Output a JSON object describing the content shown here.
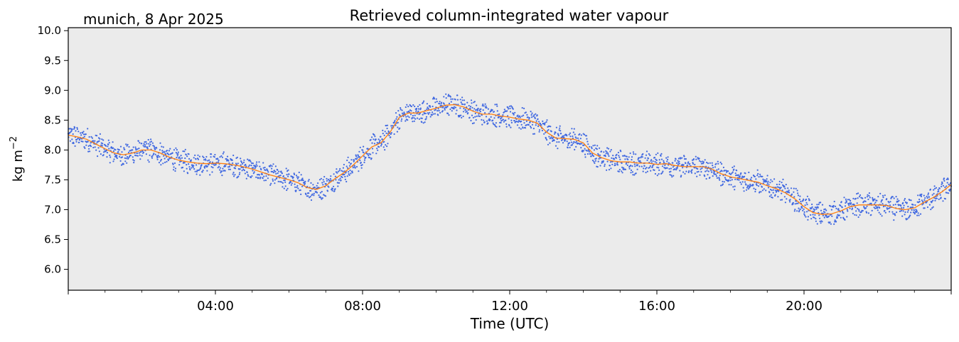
{
  "header": {
    "location_date": "munich, 8 Apr 2025"
  },
  "chart_data": {
    "type": "scatter",
    "title": "Retrieved column-integrated water vapour",
    "xlabel": "Time (UTC)",
    "ylabel": "kg m",
    "ylabel_superscript": "−2",
    "xlim": [
      0,
      24
    ],
    "ylim": [
      5.65,
      10.05
    ],
    "x_ticks": [
      {
        "value": 4,
        "label": "04:00"
      },
      {
        "value": 8,
        "label": "08:00"
      },
      {
        "value": 12,
        "label": "12:00"
      },
      {
        "value": 16,
        "label": "16:00"
      },
      {
        "value": 20,
        "label": "20:00"
      }
    ],
    "y_ticks": [
      {
        "value": 6.0,
        "label": "6.0"
      },
      {
        "value": 6.5,
        "label": "6.5"
      },
      {
        "value": 7.0,
        "label": "7.0"
      },
      {
        "value": 7.5,
        "label": "7.5"
      },
      {
        "value": 8.0,
        "label": "8.0"
      },
      {
        "value": 8.5,
        "label": "8.5"
      },
      {
        "value": 9.0,
        "label": "9.0"
      },
      {
        "value": 9.5,
        "label": "9.5"
      },
      {
        "value": 10.0,
        "label": "10.0"
      }
    ],
    "grid": false,
    "legend": "none",
    "background_color": "#ebebeb",
    "series": [
      {
        "kind": "scatter",
        "color": "#4169e1",
        "x": [
          0,
          0.25,
          0.5,
          0.75,
          1.0,
          1.25,
          1.5,
          1.75,
          2.0,
          2.25,
          2.5,
          2.75,
          3.0,
          3.25,
          3.5,
          3.75,
          4.0,
          4.25,
          4.5,
          4.75,
          5.0,
          5.25,
          5.5,
          5.75,
          6.0,
          6.25,
          6.5,
          6.75,
          7.0,
          7.25,
          7.5,
          7.75,
          8.0,
          8.25,
          8.5,
          8.75,
          9.0,
          9.25,
          9.5,
          9.75,
          10.0,
          10.25,
          10.5,
          10.75,
          11.0,
          11.25,
          11.5,
          11.75,
          12.0,
          12.25,
          12.5,
          12.75,
          13.0,
          13.25,
          13.5,
          13.75,
          14.0,
          14.25,
          14.5,
          14.75,
          15.0,
          15.25,
          15.5,
          15.75,
          16.0,
          16.25,
          16.5,
          16.75,
          17.0,
          17.25,
          17.5,
          17.75,
          18.0,
          18.25,
          18.5,
          18.75,
          19.0,
          19.25,
          19.5,
          19.75,
          20.0,
          20.25,
          20.5,
          20.75,
          21.0,
          21.25,
          21.5,
          21.75,
          22.0,
          22.25,
          22.5,
          22.75,
          23.0,
          23.25,
          23.5,
          23.75,
          24.0
        ],
        "y": [
          8.25,
          8.22,
          8.18,
          8.1,
          8.02,
          7.95,
          7.92,
          7.95,
          8.0,
          8.0,
          7.95,
          7.88,
          7.83,
          7.8,
          7.78,
          7.77,
          7.78,
          7.77,
          7.75,
          7.72,
          7.68,
          7.63,
          7.58,
          7.54,
          7.5,
          7.45,
          7.37,
          7.34,
          7.4,
          7.52,
          7.62,
          7.75,
          7.9,
          8.05,
          8.12,
          8.3,
          8.55,
          8.62,
          8.62,
          8.66,
          8.7,
          8.75,
          8.76,
          8.72,
          8.65,
          8.6,
          8.6,
          8.57,
          8.55,
          8.52,
          8.5,
          8.45,
          8.3,
          8.2,
          8.19,
          8.18,
          8.12,
          7.95,
          7.87,
          7.82,
          7.8,
          7.8,
          7.78,
          7.78,
          7.76,
          7.77,
          7.74,
          7.72,
          7.72,
          7.72,
          7.68,
          7.6,
          7.55,
          7.52,
          7.49,
          7.46,
          7.4,
          7.35,
          7.28,
          7.18,
          7.05,
          6.95,
          6.92,
          6.93,
          6.98,
          7.05,
          7.08,
          7.08,
          7.08,
          7.07,
          7.02,
          7.0,
          7.03,
          7.12,
          7.2,
          7.3,
          7.42
        ],
        "spread": 0.15
      },
      {
        "kind": "line",
        "color": "#ff7f0e",
        "x": [
          0,
          0.25,
          0.5,
          0.75,
          1.0,
          1.25,
          1.5,
          1.75,
          2.0,
          2.25,
          2.5,
          2.75,
          3.0,
          3.25,
          3.5,
          3.75,
          4.0,
          4.25,
          4.5,
          4.75,
          5.0,
          5.25,
          5.5,
          5.75,
          6.0,
          6.25,
          6.5,
          6.75,
          7.0,
          7.25,
          7.5,
          7.75,
          8.0,
          8.25,
          8.5,
          8.75,
          9.0,
          9.25,
          9.5,
          9.75,
          10.0,
          10.25,
          10.5,
          10.75,
          11.0,
          11.25,
          11.5,
          11.75,
          12.0,
          12.25,
          12.5,
          12.75,
          13.0,
          13.25,
          13.5,
          13.75,
          14.0,
          14.25,
          14.5,
          14.75,
          15.0,
          15.25,
          15.5,
          15.75,
          16.0,
          16.25,
          16.5,
          16.75,
          17.0,
          17.25,
          17.5,
          17.75,
          18.0,
          18.25,
          18.5,
          18.75,
          19.0,
          19.25,
          19.5,
          19.75,
          20.0,
          20.25,
          20.5,
          20.75,
          21.0,
          21.25,
          21.5,
          21.75,
          22.0,
          22.25,
          22.5,
          22.75,
          23.0,
          23.25,
          23.5,
          23.75,
          24.0
        ],
        "y": [
          8.25,
          8.22,
          8.18,
          8.1,
          8.02,
          7.95,
          7.92,
          7.95,
          8.0,
          8.0,
          7.95,
          7.88,
          7.83,
          7.8,
          7.78,
          7.77,
          7.78,
          7.77,
          7.75,
          7.72,
          7.68,
          7.63,
          7.58,
          7.54,
          7.5,
          7.45,
          7.37,
          7.34,
          7.4,
          7.52,
          7.62,
          7.75,
          7.9,
          8.05,
          8.12,
          8.3,
          8.55,
          8.62,
          8.62,
          8.66,
          8.7,
          8.75,
          8.76,
          8.72,
          8.65,
          8.6,
          8.6,
          8.57,
          8.55,
          8.52,
          8.5,
          8.45,
          8.3,
          8.2,
          8.19,
          8.18,
          8.12,
          7.95,
          7.87,
          7.82,
          7.8,
          7.8,
          7.78,
          7.78,
          7.76,
          7.77,
          7.74,
          7.72,
          7.72,
          7.72,
          7.68,
          7.6,
          7.55,
          7.52,
          7.49,
          7.46,
          7.4,
          7.35,
          7.28,
          7.18,
          7.05,
          6.95,
          6.92,
          6.93,
          6.98,
          7.05,
          7.08,
          7.08,
          7.08,
          7.07,
          7.02,
          7.0,
          7.03,
          7.12,
          7.2,
          7.3,
          7.42
        ]
      }
    ]
  }
}
